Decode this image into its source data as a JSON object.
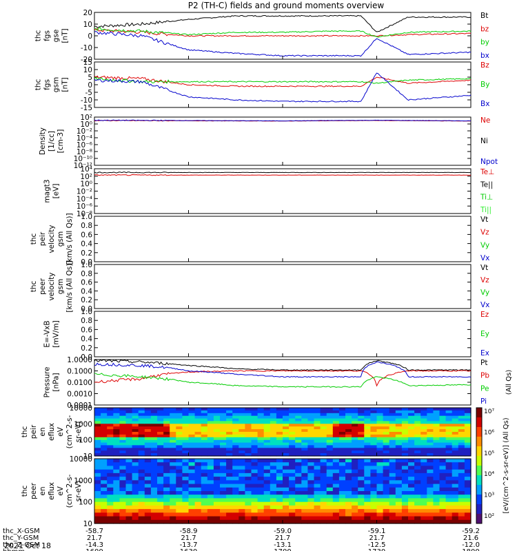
{
  "title": "P2 (TH-C) fields and ground moments overview",
  "date_label": "2021 Oct 18",
  "colors": {
    "black": "#000000",
    "red": "#dd0000",
    "green": "#00cc00",
    "blue": "#0000cc",
    "bright_green": "#33ee33"
  },
  "panels": [
    {
      "id": "fgs-gse",
      "ylabel_lines": [
        "thc",
        "fgs",
        "gse",
        "[nT]"
      ],
      "yticks": [
        "20",
        "10",
        "0",
        "-10",
        "-20"
      ],
      "legend": [
        {
          "text": "Bt",
          "color": "#000000"
        },
        {
          "text": "bz",
          "color": "#dd0000"
        },
        {
          "text": "by",
          "color": "#00cc00"
        },
        {
          "text": "bx",
          "color": "#0000cc"
        }
      ]
    },
    {
      "id": "fgs-gsm",
      "ylabel_lines": [
        "thc",
        "fgs",
        "gsm",
        "[nT]"
      ],
      "yticks": [
        "15",
        "10",
        "5",
        "0",
        "-5",
        "-10",
        "-15"
      ],
      "legend": [
        {
          "text": "Bz",
          "color": "#dd0000"
        },
        {
          "text": "By",
          "color": "#00cc00"
        },
        {
          "text": "Bx",
          "color": "#0000cc"
        }
      ]
    },
    {
      "id": "density",
      "ylabel_lines": [
        "Density",
        "[1/cc]",
        "[cm-3]"
      ],
      "yticks": [
        "10²",
        "10⁰",
        "10⁻²",
        "10⁻⁴",
        "10⁻⁶",
        "10⁻⁸",
        "10⁻¹⁰",
        "10⁻¹²"
      ],
      "legend": [
        {
          "text": "Ne",
          "color": "#dd0000"
        },
        {
          "text": "Ni",
          "color": "#000000"
        },
        {
          "text": "Npot",
          "color": "#0000cc"
        }
      ]
    },
    {
      "id": "temperature",
      "ylabel_lines": [
        "magt3",
        "[eV]"
      ],
      "yticks": [
        "10⁴",
        "10²",
        "10⁰",
        "10⁻²",
        "10⁻⁴",
        "10⁻⁶",
        "10⁻⁸"
      ],
      "legend": [
        {
          "text": "Te⊥",
          "color": "#dd0000"
        },
        {
          "text": "Te||",
          "color": "#000000"
        },
        {
          "text": "Ti⊥",
          "color": "#00cc00"
        },
        {
          "text": "Ti||",
          "color": "#33ee33"
        }
      ]
    },
    {
      "id": "peir-velocity",
      "ylabel_lines": [
        "thc",
        "peir",
        "velocity",
        "gsm",
        "[km/s (All Qs)]"
      ],
      "yticks": [
        "1.0",
        "0.8",
        "0.6",
        "0.4",
        "0.2",
        "0.0"
      ],
      "legend": [
        {
          "text": "Vt",
          "color": "#000000"
        },
        {
          "text": "Vz",
          "color": "#dd0000"
        },
        {
          "text": "Vy",
          "color": "#00cc00"
        },
        {
          "text": "Vx",
          "color": "#0000cc"
        }
      ]
    },
    {
      "id": "peer-velocity",
      "ylabel_lines": [
        "thc",
        "peer",
        "velocity",
        "gsm",
        "[km/s (All Qs)]"
      ],
      "yticks": [
        "1.0",
        "0.8",
        "0.6",
        "0.4",
        "0.2",
        "0.0"
      ],
      "legend": [
        {
          "text": "Vt",
          "color": "#000000"
        },
        {
          "text": "Vz",
          "color": "#dd0000"
        },
        {
          "text": "Vy",
          "color": "#00cc00"
        },
        {
          "text": "Vx",
          "color": "#0000cc"
        }
      ]
    },
    {
      "id": "efield",
      "ylabel_lines": [
        "E=-VxB",
        "[mV/m]"
      ],
      "yticks": [
        "1.0",
        "0.8",
        "0.6",
        "0.4",
        "0.2",
        "0.0"
      ],
      "legend": [
        {
          "text": "Ez",
          "color": "#dd0000"
        },
        {
          "text": "Ey",
          "color": "#00cc00"
        },
        {
          "text": "Ex",
          "color": "#0000cc"
        }
      ]
    },
    {
      "id": "pressure",
      "ylabel_lines": [
        "Pressure",
        "[nPa]"
      ],
      "yticks": [
        "1.0000",
        "0.1000",
        "0.0100",
        "0.0010",
        "0.0001"
      ],
      "legend": [
        {
          "text": "Pt",
          "color": "#000000"
        },
        {
          "text": "Pb",
          "color": "#dd0000"
        },
        {
          "text": "Pe",
          "color": "#00cc00"
        },
        {
          "text": "Pi",
          "color": "#0000cc"
        }
      ],
      "side_label": "(All Qs)"
    },
    {
      "id": "peir-spec",
      "ylabel_lines": [
        "thc",
        "peir",
        "en",
        "eflux",
        "eV",
        "(cm^2-s-",
        "sr-eV)"
      ],
      "yticks": [
        "10000",
        "1000",
        "100",
        "10"
      ]
    },
    {
      "id": "peer-spec",
      "ylabel_lines": [
        "thc",
        "peer",
        "en",
        "eflux",
        "eV",
        "(cm^2-s-",
        "sr-eV)"
      ],
      "yticks": [
        "10000",
        "1000",
        "100",
        "10"
      ]
    }
  ],
  "colorbar": {
    "ticks": [
      "10⁷",
      "10⁶",
      "10⁵",
      "10⁴",
      "10³",
      "10²"
    ],
    "label": "[eV/(cm^2-s-sr-eV)] (All Qs)"
  },
  "xaxis": {
    "row_labels": [
      "thc_X-GSM",
      "thc_Y-GSM",
      "thc_Z-GSM",
      "hhmm"
    ],
    "columns": [
      [
        "-58.7",
        "21.7",
        "-14.3",
        "1600"
      ],
      [
        "-58.9",
        "21.7",
        "-13.7",
        "1630"
      ],
      [
        "-59.0",
        "21.7",
        "-13.1",
        "1700"
      ],
      [
        "-59.1",
        "21.7",
        "-12.5",
        "1730"
      ],
      [
        "-59.2",
        "21.6",
        "-12.0",
        "1800"
      ]
    ]
  },
  "chart_data": {
    "type": "line",
    "title": "P2 (TH-C) fields and ground moments overview",
    "x": [
      "1600",
      "1630",
      "1700",
      "1730",
      "1800"
    ],
    "xlabel": "hhmm",
    "series": [
      {
        "name": "Bt",
        "panel": "fgs-gse",
        "x": [
          "1600",
          "1615",
          "1630",
          "1645",
          "1700",
          "1715",
          "1725",
          "1730",
          "1740",
          "1800"
        ],
        "values": [
          8,
          10,
          14,
          17,
          17,
          17,
          17,
          3,
          16,
          16
        ]
      },
      {
        "name": "bz",
        "panel": "fgs-gse",
        "x": [
          "1600",
          "1615",
          "1630",
          "1645",
          "1700",
          "1715",
          "1725",
          "1730",
          "1740",
          "1800"
        ],
        "values": [
          5,
          3,
          0,
          0,
          0,
          0,
          0,
          0,
          1,
          2
        ]
      },
      {
        "name": "by",
        "panel": "fgs-gse",
        "x": [
          "1600",
          "1615",
          "1630",
          "1645",
          "1700",
          "1715",
          "1725",
          "1730",
          "1740",
          "1800"
        ],
        "values": [
          6,
          4,
          1,
          3,
          3,
          4,
          4,
          -1,
          3,
          4
        ]
      },
      {
        "name": "bx",
        "panel": "fgs-gse",
        "x": [
          "1600",
          "1615",
          "1630",
          "1645",
          "1700",
          "1715",
          "1725",
          "1730",
          "1740",
          "1800"
        ],
        "values": [
          3,
          0,
          -12,
          -15,
          -17,
          -17,
          -17,
          -2,
          -16,
          -14
        ]
      },
      {
        "name": "Bz",
        "panel": "fgs-gsm",
        "x": [
          "1600",
          "1615",
          "1630",
          "1645",
          "1700",
          "1715",
          "1725",
          "1730",
          "1740",
          "1800"
        ],
        "values": [
          5,
          4,
          0,
          -1,
          -1,
          -1,
          -1,
          5,
          1,
          3
        ]
      },
      {
        "name": "By",
        "panel": "fgs-gsm",
        "x": [
          "1600",
          "1615",
          "1630",
          "1645",
          "1700",
          "1715",
          "1725",
          "1730",
          "1740",
          "1800"
        ],
        "values": [
          4,
          2,
          2,
          2,
          2,
          2,
          2,
          1,
          3,
          4
        ]
      },
      {
        "name": "Bx",
        "panel": "fgs-gsm",
        "x": [
          "1600",
          "1615",
          "1630",
          "1645",
          "1700",
          "1715",
          "1725",
          "1730",
          "1740",
          "1800"
        ],
        "values": [
          3,
          2,
          -8,
          -10,
          -11,
          -11,
          -11,
          8,
          -10,
          -7
        ]
      },
      {
        "name": "Ne",
        "panel": "density",
        "x": [
          "1600",
          "1700",
          "1730",
          "1800"
        ],
        "values": [
          10,
          7,
          10,
          7
        ]
      },
      {
        "name": "Npot",
        "panel": "density",
        "x": [
          "1600",
          "1700",
          "1730",
          "1800"
        ],
        "values": [
          12,
          8,
          12,
          8
        ]
      },
      {
        "name": "Te||",
        "panel": "temperature",
        "x": [
          "1600",
          "1800"
        ],
        "values": [
          1000,
          1000
        ]
      },
      {
        "name": "Te⊥",
        "panel": "temperature",
        "x": [
          "1600",
          "1800"
        ],
        "values": [
          200,
          200
        ]
      },
      {
        "name": "Pt",
        "panel": "pressure",
        "x": [
          "1600",
          "1615",
          "1630",
          "1645",
          "1700",
          "1725",
          "1730",
          "1740",
          "1800"
        ],
        "values": [
          0.8,
          0.6,
          0.3,
          0.15,
          0.12,
          0.12,
          0.8,
          0.12,
          0.12
        ]
      },
      {
        "name": "Pb",
        "panel": "pressure",
        "x": [
          "1600",
          "1615",
          "1630",
          "1645",
          "1700",
          "1725",
          "1730",
          "1740",
          "1800"
        ],
        "values": [
          0.01,
          0.02,
          0.08,
          0.1,
          0.1,
          0.1,
          0.005,
          0.1,
          0.1
        ]
      },
      {
        "name": "Pe",
        "panel": "pressure",
        "x": [
          "1600",
          "1615",
          "1630",
          "1645",
          "1700",
          "1725",
          "1730",
          "1740",
          "1800"
        ],
        "values": [
          0.05,
          0.03,
          0.01,
          0.005,
          0.004,
          0.004,
          0.03,
          0.005,
          0.006
        ]
      },
      {
        "name": "Pi",
        "panel": "pressure",
        "x": [
          "1600",
          "1615",
          "1630",
          "1645",
          "1700",
          "1725",
          "1730",
          "1740",
          "1800"
        ],
        "values": [
          0.4,
          0.3,
          0.1,
          0.05,
          0.03,
          0.03,
          0.6,
          0.03,
          0.03
        ]
      }
    ]
  }
}
